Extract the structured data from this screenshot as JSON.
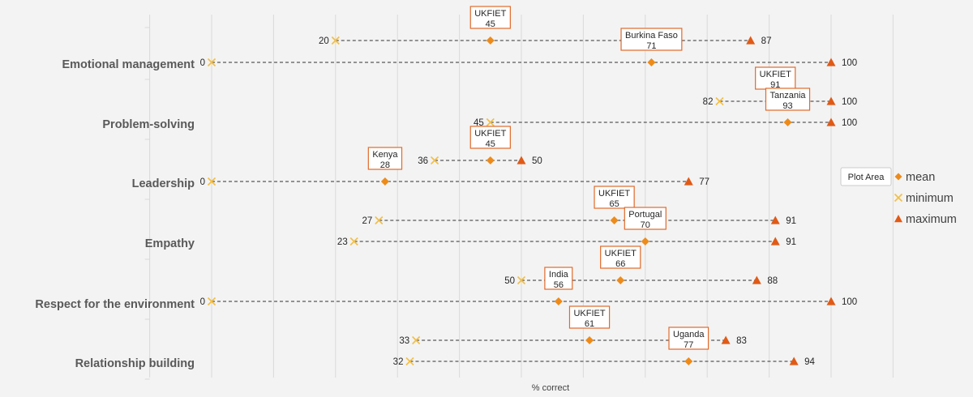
{
  "colors": {
    "mean": "#ED8B1A",
    "minimum": "#F2BE45",
    "maximum": "#E05A16",
    "callout_border": "#E06A2A",
    "grid": "#d9d9d9",
    "line": "#595959"
  },
  "plot_area_tooltip": "Plot Area",
  "chart_data": {
    "type": "scatter",
    "title": "",
    "xlabel": "% correct",
    "ylabel": "",
    "xlim": [
      -10,
      110
    ],
    "grid": "vertical",
    "legend": {
      "position": "right",
      "items": [
        {
          "name": "mean",
          "marker": "diamond"
        },
        {
          "name": "minimum",
          "marker": "x"
        },
        {
          "name": "maximum",
          "marker": "triangle"
        }
      ]
    },
    "categories": [
      "Emotional management",
      "Problem-solving",
      "Leadership",
      "Empathy",
      "Respect for the environment",
      "Relationship building"
    ],
    "rows": [
      {
        "category": "Emotional management",
        "group": "UKFIET",
        "min": 20,
        "mean": 45,
        "max": 87,
        "show_min_label": true,
        "show_max_label": true
      },
      {
        "category": "Emotional management",
        "group": "Burkina Faso",
        "min": 0,
        "mean": 71,
        "max": 100,
        "show_min_label": true,
        "show_max_label": true
      },
      {
        "category": "Problem-solving",
        "group": "UKFIET",
        "min": 82,
        "mean": 91,
        "max": 100,
        "show_min_label": true,
        "show_max_label": true
      },
      {
        "category": "Problem-solving",
        "group": "Tanzania",
        "min": 45,
        "mean": 93,
        "max": 100,
        "show_min_label": true,
        "show_max_label": true
      },
      {
        "category": "Leadership",
        "group": "UKFIET",
        "min": 36,
        "mean": 45,
        "max": 50,
        "show_min_label": true,
        "show_max_label": true
      },
      {
        "category": "Leadership",
        "group": "Kenya",
        "min": 0,
        "mean": 28,
        "max": 77,
        "show_min_label": true,
        "show_max_label": true
      },
      {
        "category": "Empathy",
        "group": "UKFIET",
        "min": 27,
        "mean": 65,
        "max": 91,
        "show_min_label": true,
        "show_max_label": true
      },
      {
        "category": "Empathy",
        "group": "Portugal",
        "min": 23,
        "mean": 70,
        "max": 91,
        "show_min_label": true,
        "show_max_label": true
      },
      {
        "category": "Respect for the environment",
        "group": "UKFIET",
        "min": 50,
        "mean": 66,
        "max": 88,
        "show_min_label": true,
        "show_max_label": true
      },
      {
        "category": "Respect for the environment",
        "group": "India",
        "min": 0,
        "mean": 56,
        "max": 100,
        "show_min_label": true,
        "show_max_label": true
      },
      {
        "category": "Relationship building",
        "group": "UKFIET",
        "min": 33,
        "mean": 61,
        "max": 83,
        "show_min_label": true,
        "show_max_label": true
      },
      {
        "category": "Relationship building",
        "group": "Uganda",
        "min": 32,
        "mean": 77,
        "max": 94,
        "show_min_label": true,
        "show_max_label": true
      }
    ]
  }
}
